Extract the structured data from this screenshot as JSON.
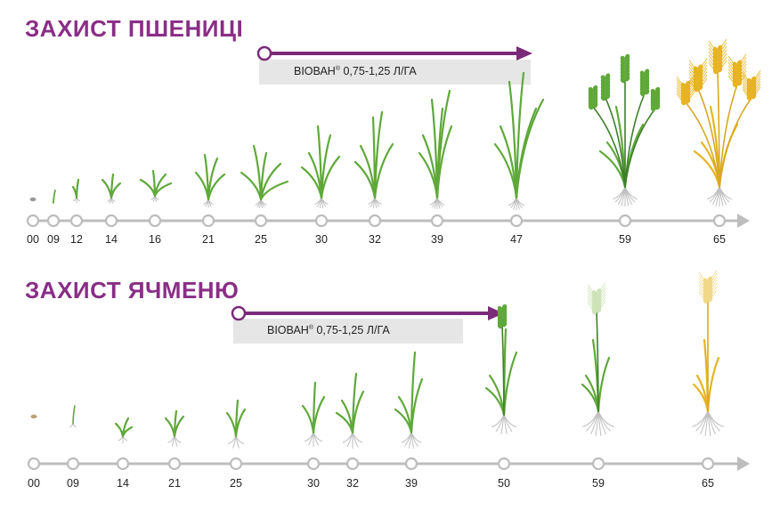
{
  "colors": {
    "title": "#8a2e87",
    "arrow": "#7a2a78",
    "axis": "#bdbdbd",
    "green": "#5fa83a",
    "dark_green": "#3f7f2a",
    "yellow": "#e6b422",
    "root": "#bfbfbf",
    "seed": "#b9a07a"
  },
  "wheat": {
    "title": "ЗАХИСТ ПШЕНИЦІ",
    "treatment": {
      "product": "ВІОВАН",
      "mark": "®",
      "rate": "0,75-1,25 Л/ГА"
    },
    "stages": [
      "00",
      "09",
      "12",
      "14",
      "16",
      "21",
      "25",
      "30",
      "32",
      "39",
      "47",
      "59",
      "65"
    ]
  },
  "barley": {
    "title": "ЗАХИСТ ЯЧМЕНЮ",
    "treatment": {
      "product": "ВІОВАН",
      "mark": "®",
      "rate": "0,75-1,25 Л/ГА"
    },
    "stages": [
      "00",
      "09",
      "14",
      "21",
      "25",
      "30",
      "32",
      "39",
      "50",
      "59",
      "65"
    ]
  }
}
